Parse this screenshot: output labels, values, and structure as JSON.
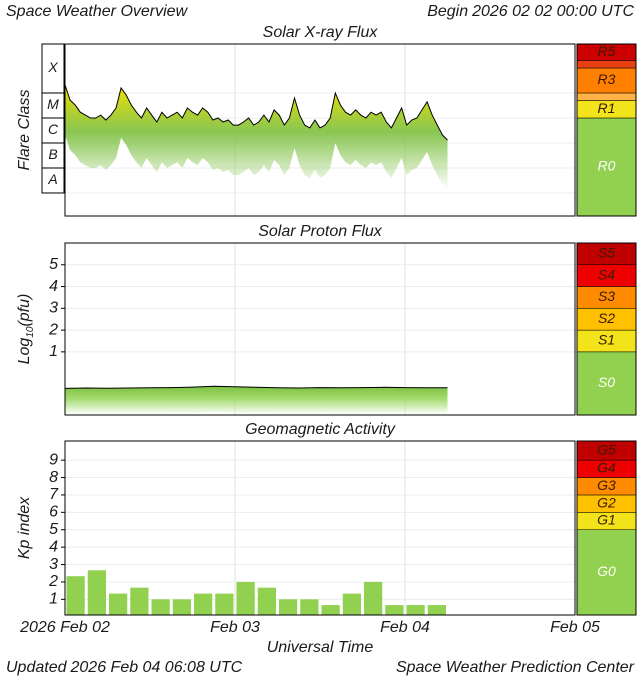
{
  "header": {
    "title": "Space Weather Overview",
    "begin_label": "Begin",
    "begin": "2026 02 02 00:00 UTC"
  },
  "footer": {
    "updated_label": "Updated",
    "updated": "2026 Feb 04 06:08 UTC",
    "credit": "Space Weather Prediction Center"
  },
  "chart_data": [
    {
      "type": "line",
      "title": "Solar X-ray Flux",
      "ylabel": "Flare Class",
      "log": true,
      "ylim": [
        1.2e-09,
        0.0091
      ],
      "yticks": [
        {
          "value": 1e-08,
          "label": "A"
        },
        {
          "value": 1e-07,
          "label": "B"
        },
        {
          "value": 1e-06,
          "label": "C"
        },
        {
          "value": 1e-05,
          "label": "M"
        },
        {
          "value": 0.0001,
          "label": "X"
        }
      ],
      "color": "#000000",
      "fill_colors": [
        "#f0e000",
        "#7cc040"
      ],
      "x": [
        0,
        0.03,
        0.06,
        0.09,
        0.12,
        0.15,
        0.18,
        0.21,
        0.24,
        0.27,
        0.3,
        0.33,
        0.36,
        0.39,
        0.42,
        0.45,
        0.48,
        0.51,
        0.54,
        0.57,
        0.6,
        0.63,
        0.66,
        0.69,
        0.72,
        0.75,
        0.78,
        0.81,
        0.84,
        0.87,
        0.9,
        0.93,
        0.96,
        0.99,
        1.02,
        1.05,
        1.08,
        1.11,
        1.14,
        1.17,
        1.2,
        1.23,
        1.26,
        1.29,
        1.32,
        1.35,
        1.38,
        1.41,
        1.44,
        1.47,
        1.5,
        1.53,
        1.56,
        1.59,
        1.62,
        1.65,
        1.68,
        1.71,
        1.74,
        1.77,
        1.8,
        1.83,
        1.86,
        1.89,
        1.92,
        1.95,
        1.98,
        2.01,
        2.04,
        2.07,
        2.1,
        2.13,
        2.16,
        2.19,
        2.22,
        2.25
      ],
      "values": [
        0.00021,
        5.2e-05,
        3.3e-05,
        1.7e-05,
        1.3e-05,
        1e-05,
        1e-05,
        1.3e-05,
        8.3e-06,
        1.3e-05,
        2.5e-05,
        0.00016,
        8.3e-05,
        3.3e-05,
        1.7e-05,
        1e-05,
        2.5e-05,
        1.3e-05,
        6.9e-06,
        1.7e-05,
        1e-05,
        1.3e-05,
        1.7e-05,
        1e-05,
        2.5e-05,
        1.7e-05,
        1.3e-05,
        2.5e-05,
        1.7e-05,
        8.3e-06,
        1e-05,
        6.9e-06,
        8.3e-06,
        5.2e-06,
        5.2e-06,
        6.9e-06,
        1e-05,
        5.2e-06,
        6.9e-06,
        1.3e-05,
        6.9e-06,
        2.1e-05,
        1.3e-05,
        5.2e-06,
        1e-05,
        6.3e-05,
        1.3e-05,
        5.2e-06,
        4e-06,
        8.3e-06,
        4e-06,
        5.2e-06,
        1e-05,
        0.0001,
        3.3e-05,
        1.7e-05,
        1.3e-05,
        2.1e-05,
        1.3e-05,
        1e-05,
        1.7e-05,
        1.3e-05,
        1.7e-05,
        6.9e-06,
        4e-06,
        1e-05,
        2.5e-05,
        5.2e-06,
        8.3e-06,
        1e-05,
        2.1e-05,
        4.4e-05,
        1.3e-05,
        5.2e-06,
        2.1e-06,
        1.3e-06
      ],
      "scale": {
        "labels": [
          "R0",
          "R1",
          null,
          "R3",
          null,
          "R5"
        ],
        "thresholds": [
          1e-05,
          5e-05,
          0.0001,
          0.001,
          0.002
        ],
        "colors": [
          "#92d050",
          "#f2e31a",
          "#ffb347",
          "#ff8000",
          "#e84010",
          "#cc0000"
        ]
      }
    },
    {
      "type": "line",
      "title": "Solar Proton Flux",
      "ylabel": {
        "base": "Log",
        "sub": "10",
        "rest": "(pfu)"
      },
      "ylim": [
        -1.9,
        6
      ],
      "yticks": [
        1,
        2,
        3,
        4,
        5
      ],
      "color": "#000000",
      "fill_colors": [
        "#7cc040",
        "#9ad860"
      ],
      "x": [
        0,
        0.125,
        0.25,
        0.375,
        0.5,
        0.625,
        0.75,
        0.875,
        1,
        1.125,
        1.25,
        1.375,
        1.5,
        1.625,
        1.75,
        1.875,
        2,
        2.125,
        2.25
      ],
      "values": [
        -0.68,
        -0.66,
        -0.67,
        -0.66,
        -0.65,
        -0.64,
        -0.62,
        -0.58,
        -0.6,
        -0.63,
        -0.65,
        -0.66,
        -0.64,
        -0.65,
        -0.64,
        -0.63,
        -0.64,
        -0.65,
        -0.65
      ],
      "scale": {
        "labels": [
          "S0",
          "S1",
          "S2",
          "S3",
          "S4",
          "S5"
        ],
        "thresholds": [
          1,
          2,
          3,
          4,
          5
        ],
        "colors": [
          "#92d050",
          "#f2e31a",
          "#ffc000",
          "#ff8c00",
          "#ee0000",
          "#c00000"
        ]
      }
    },
    {
      "type": "bar",
      "title": "Geomagnetic Activity",
      "ylabel": "Kp index",
      "ylim": [
        0.1,
        10.1
      ],
      "yticks": [
        1,
        2,
        3,
        4,
        5,
        6,
        7,
        8,
        9
      ],
      "color": "#92d050",
      "x": [
        0,
        0.125,
        0.25,
        0.375,
        0.5,
        0.625,
        0.75,
        0.875,
        1,
        1.125,
        1.25,
        1.375,
        1.5,
        1.625,
        1.75,
        1.875,
        2,
        2.125
      ],
      "values": [
        2.33,
        2.67,
        1.33,
        1.67,
        1,
        1,
        1.33,
        1.33,
        2,
        1.67,
        1,
        1,
        0.67,
        1.33,
        2,
        0.67,
        0.67,
        0.67
      ],
      "xlim": [
        0,
        3
      ],
      "xticks": [
        {
          "value": 0,
          "label": "2026 Feb 02"
        },
        {
          "value": 1,
          "label": "Feb 03"
        },
        {
          "value": 2,
          "label": "Feb 04"
        },
        {
          "value": 3,
          "label": "Feb 05"
        }
      ],
      "xlabel": "Universal Time",
      "scale": {
        "labels": [
          "G0",
          "G1",
          "G2",
          "G3",
          "G4",
          "G5"
        ],
        "thresholds": [
          5,
          6,
          7,
          8,
          9
        ],
        "colors": [
          "#92d050",
          "#f2e31a",
          "#ffc000",
          "#ff8c00",
          "#ee0000",
          "#c00000"
        ]
      }
    }
  ]
}
